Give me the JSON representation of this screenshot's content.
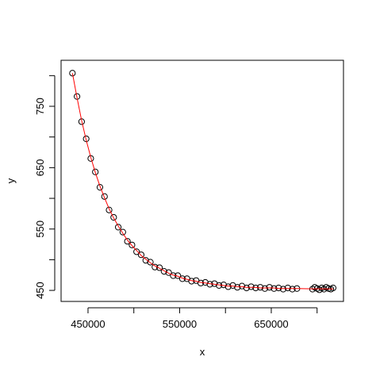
{
  "chart_data": {
    "type": "scatter",
    "xlabel": "x",
    "ylabel": "y",
    "x": [
      433000,
      438000,
      443000,
      448000,
      453000,
      458000,
      463000,
      468000,
      473000,
      478000,
      483000,
      488000,
      493000,
      498000,
      503000,
      508000,
      513000,
      518000,
      523000,
      528000,
      533000,
      538000,
      543000,
      548000,
      553000,
      558000,
      563000,
      568000,
      573000,
      578000,
      583000,
      588000,
      593000,
      598000,
      603000,
      608000,
      613000,
      618000,
      623000,
      628000,
      633000,
      638000,
      643000,
      648000,
      653000,
      658000,
      663000,
      668000,
      673000,
      678000,
      695000,
      697500,
      700000,
      702500,
      705000,
      707500,
      710000,
      712500,
      715000,
      717500
    ],
    "series": [
      {
        "type": "scatter",
        "color": "#000000",
        "values": [
          804,
          766,
          725,
          697,
          665,
          643,
          618,
          603,
          581,
          569,
          553,
          545,
          530,
          524,
          513,
          508,
          499,
          496,
          488,
          487,
          481,
          479,
          474,
          474,
          469,
          469,
          465,
          466,
          462,
          463,
          460,
          461,
          458,
          459,
          456,
          458,
          455,
          457,
          454,
          456,
          454,
          455,
          453,
          455,
          453,
          454,
          452,
          454,
          452,
          453,
          452,
          455,
          453,
          451,
          454,
          452,
          455,
          453,
          452,
          454
        ]
      },
      {
        "type": "line",
        "color": "#ff0000",
        "values": [
          804,
          764,
          727,
          695,
          667,
          642,
          620,
          601,
          583,
          568,
          555,
          543,
          532,
          523,
          515,
          507,
          501,
          495,
          490,
          486,
          482,
          478,
          475,
          473,
          470,
          468,
          466,
          465,
          463,
          462,
          461,
          460,
          459,
          458,
          457,
          457,
          456,
          456,
          455,
          455,
          455,
          454,
          454,
          454,
          454,
          453,
          453,
          453,
          453,
          453,
          452.6,
          452.6,
          452.6,
          452.5,
          452.5,
          452.5,
          452.5,
          452.4,
          452.4,
          452.4
        ]
      }
    ],
    "xlim": [
      420600,
      728800
    ],
    "ylim": [
      432,
      825
    ],
    "xticks": [
      450000,
      {
        "value": 500000,
        "label": null
      },
      550000,
      {
        "value": 600000,
        "label": null
      },
      650000,
      {
        "value": 700000,
        "label": null
      }
    ],
    "yticks": [
      450,
      {
        "value": 500,
        "label": null
      },
      550,
      {
        "value": 600,
        "label": null
      },
      650,
      {
        "value": 700,
        "label": null
      },
      750,
      {
        "value": 800,
        "label": null
      }
    ],
    "grid": false
  }
}
